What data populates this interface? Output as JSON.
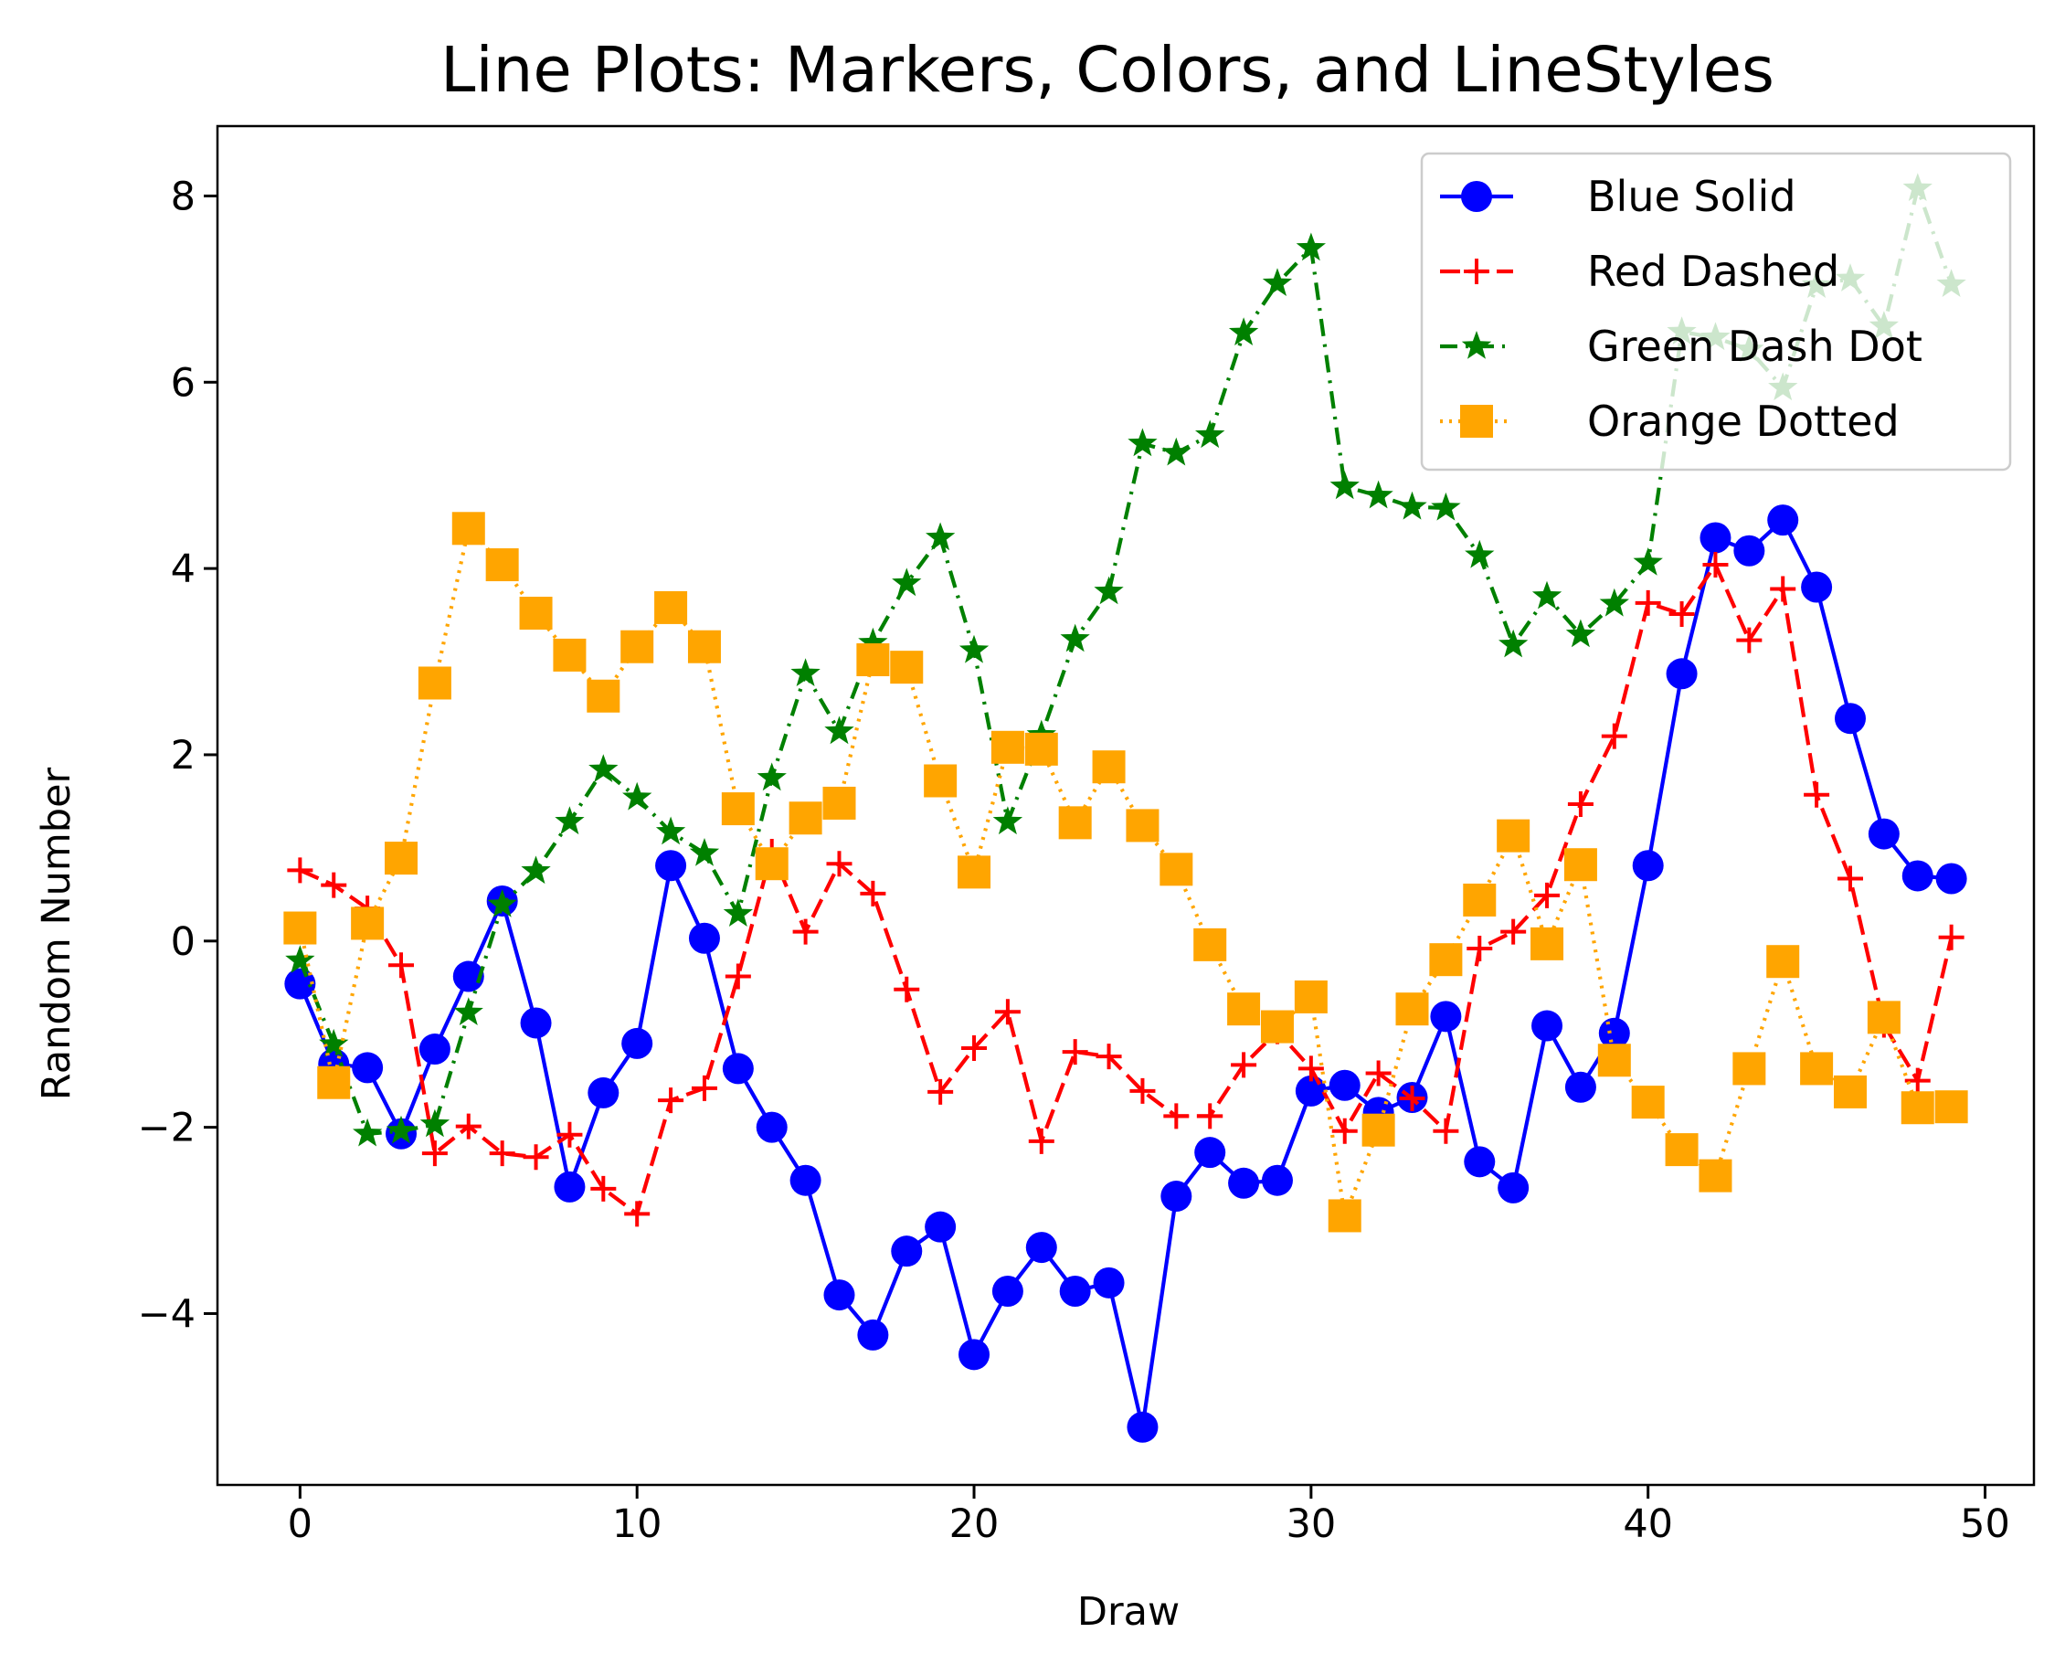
{
  "chart_data": {
    "type": "line",
    "title": "Line Plots: Markers, Colors, and LineStyles",
    "xlabel": "Draw",
    "ylabel": "Random Number",
    "xlim": [
      -2.45,
      51.45
    ],
    "ylim": [
      -5.84,
      8.75
    ],
    "xticks": [
      0,
      10,
      20,
      30,
      40,
      50
    ],
    "yticks": [
      -4,
      -2,
      0,
      2,
      4,
      6,
      8
    ],
    "grid": false,
    "legend_position": "upper right",
    "x": [
      0,
      1,
      2,
      3,
      4,
      5,
      6,
      7,
      8,
      9,
      10,
      11,
      12,
      13,
      14,
      15,
      16,
      17,
      18,
      19,
      20,
      21,
      22,
      23,
      24,
      25,
      26,
      27,
      28,
      29,
      30,
      31,
      32,
      33,
      34,
      35,
      36,
      37,
      38,
      39,
      40,
      41,
      42,
      43,
      44,
      45,
      46,
      47,
      48,
      49
    ],
    "series": [
      {
        "name": "Blue Solid",
        "color": "#0000ff",
        "linestyle": "solid",
        "marker": "circle",
        "values": [
          -0.46,
          -1.32,
          -1.36,
          -2.07,
          -1.16,
          -0.38,
          0.43,
          -0.88,
          -2.64,
          -1.63,
          -1.1,
          0.81,
          0.03,
          -1.37,
          -2.0,
          -2.57,
          -3.8,
          -4.23,
          -3.33,
          -3.07,
          -4.44,
          -3.76,
          -3.29,
          -3.76,
          -3.67,
          -5.22,
          -2.74,
          -2.27,
          -2.6,
          -2.57,
          -1.61,
          -1.55,
          -1.84,
          -1.68,
          -0.81,
          -2.37,
          -2.65,
          -0.91,
          -1.57,
          -0.99,
          0.81,
          2.87,
          4.33,
          4.19,
          4.52,
          3.8,
          2.39,
          1.15,
          0.7,
          0.67
        ]
      },
      {
        "name": "Red Dashed",
        "color": "#ff0000",
        "linestyle": "dashed",
        "marker": "plus",
        "values": [
          0.76,
          0.6,
          0.35,
          -0.26,
          -2.28,
          -1.99,
          -2.28,
          -2.32,
          -2.08,
          -2.66,
          -2.93,
          -1.71,
          -1.58,
          -0.38,
          0.96,
          0.1,
          0.83,
          0.51,
          -0.52,
          -1.62,
          -1.15,
          -0.76,
          -2.15,
          -1.19,
          -1.24,
          -1.61,
          -1.88,
          -1.88,
          -1.33,
          -0.97,
          -1.37,
          -2.04,
          -1.42,
          -1.69,
          -2.04,
          -0.08,
          0.1,
          0.49,
          1.47,
          2.2,
          3.63,
          3.51,
          4.04,
          3.23,
          3.78,
          1.57,
          0.67,
          -0.9,
          -1.5,
          0.04
        ]
      },
      {
        "name": "Green Dash Dot",
        "color": "#008000",
        "linestyle": "dashdot",
        "marker": "star",
        "values": [
          -0.21,
          -1.11,
          -2.07,
          -2.04,
          -1.97,
          -0.77,
          0.39,
          0.75,
          1.28,
          1.84,
          1.54,
          1.17,
          0.94,
          0.29,
          1.75,
          2.87,
          2.25,
          3.2,
          3.84,
          4.33,
          3.12,
          1.28,
          2.21,
          3.24,
          3.75,
          5.34,
          5.24,
          5.43,
          6.53,
          7.06,
          7.44,
          4.88,
          4.78,
          4.66,
          4.65,
          4.14,
          3.18,
          3.7,
          3.29,
          3.62,
          4.06,
          6.54,
          6.48,
          6.35,
          5.94,
          7.04,
          7.11,
          6.6,
          8.08,
          7.05
        ]
      },
      {
        "name": "Orange Dotted",
        "color": "#ffa500",
        "linestyle": "dotted",
        "marker": "square",
        "values": [
          0.14,
          -1.52,
          0.19,
          0.89,
          2.77,
          4.43,
          4.04,
          3.52,
          3.07,
          2.63,
          3.16,
          3.58,
          3.16,
          1.42,
          0.83,
          1.32,
          1.48,
          3.02,
          2.94,
          1.72,
          0.74,
          2.08,
          2.06,
          1.27,
          1.87,
          1.24,
          0.77,
          -0.04,
          -0.73,
          -0.92,
          -0.6,
          -2.95,
          -2.03,
          -0.73,
          -0.2,
          0.44,
          1.13,
          -0.03,
          0.82,
          -1.28,
          -1.73,
          -2.24,
          -2.52,
          -1.37,
          -0.22,
          -1.37,
          -1.62,
          -0.82,
          -1.79,
          -1.78
        ]
      }
    ]
  }
}
